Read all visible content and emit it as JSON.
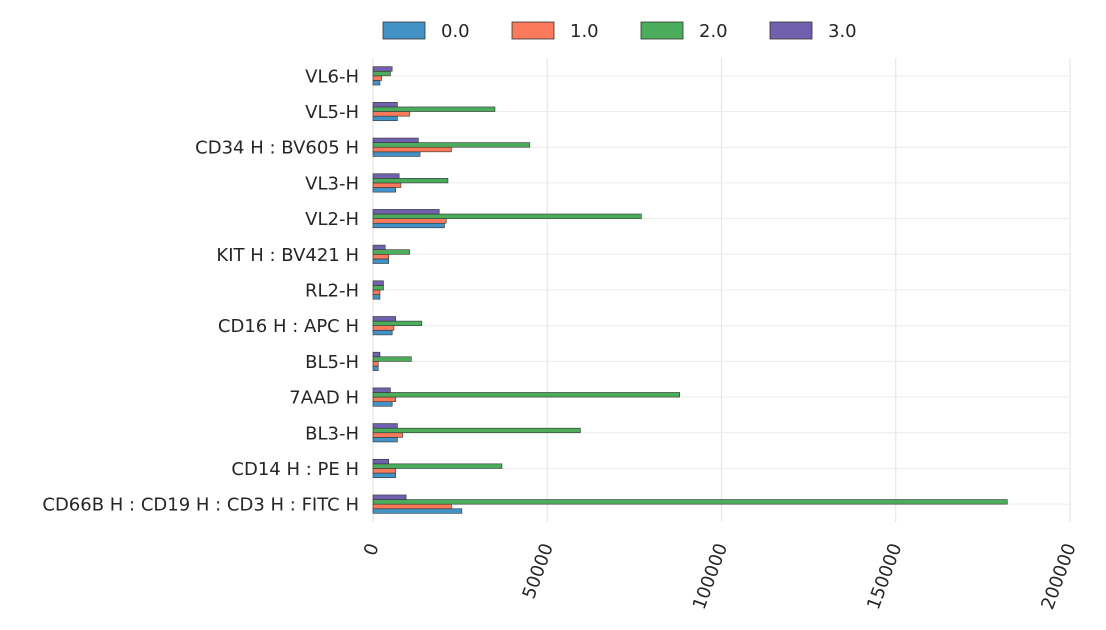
{
  "chart_data": {
    "type": "bar",
    "orientation": "horizontal",
    "categories": [
      "VL6-H",
      "VL5-H",
      "CD34 H : BV605 H",
      "VL3-H",
      "VL2-H",
      "KIT H : BV421 H",
      "RL2-H",
      "CD16 H : APC H",
      "BL5-H",
      "7AAD H",
      "BL3-H",
      "CD14 H : PE H",
      "CD66B H : CD19 H : CD3 H : FITC H"
    ],
    "series": [
      {
        "name": "0.0",
        "color": "#4292c6",
        "values": [
          2000,
          7000,
          13500,
          6500,
          20500,
          4500,
          2000,
          5500,
          1500,
          5500,
          7000,
          6500,
          25500
        ]
      },
      {
        "name": "1.0",
        "color": "#fb7a5b",
        "values": [
          2500,
          10500,
          22500,
          8000,
          21000,
          4500,
          2000,
          6000,
          1500,
          6500,
          8500,
          6500,
          22500
        ]
      },
      {
        "name": "2.0",
        "color": "#4bad5c",
        "values": [
          5000,
          35000,
          45000,
          21500,
          77000,
          10500,
          3000,
          14000,
          11000,
          88000,
          59500,
          37000,
          182000
        ]
      },
      {
        "name": "3.0",
        "color": "#7160ad",
        "values": [
          5500,
          7000,
          13000,
          7500,
          19000,
          3500,
          3000,
          6500,
          2000,
          5000,
          7000,
          4500,
          9500
        ]
      }
    ],
    "xlim": [
      0,
      200000
    ],
    "xticks": [
      "0",
      "50000",
      "100000",
      "150000",
      "200000"
    ],
    "grid": true,
    "legend_position": "top"
  }
}
